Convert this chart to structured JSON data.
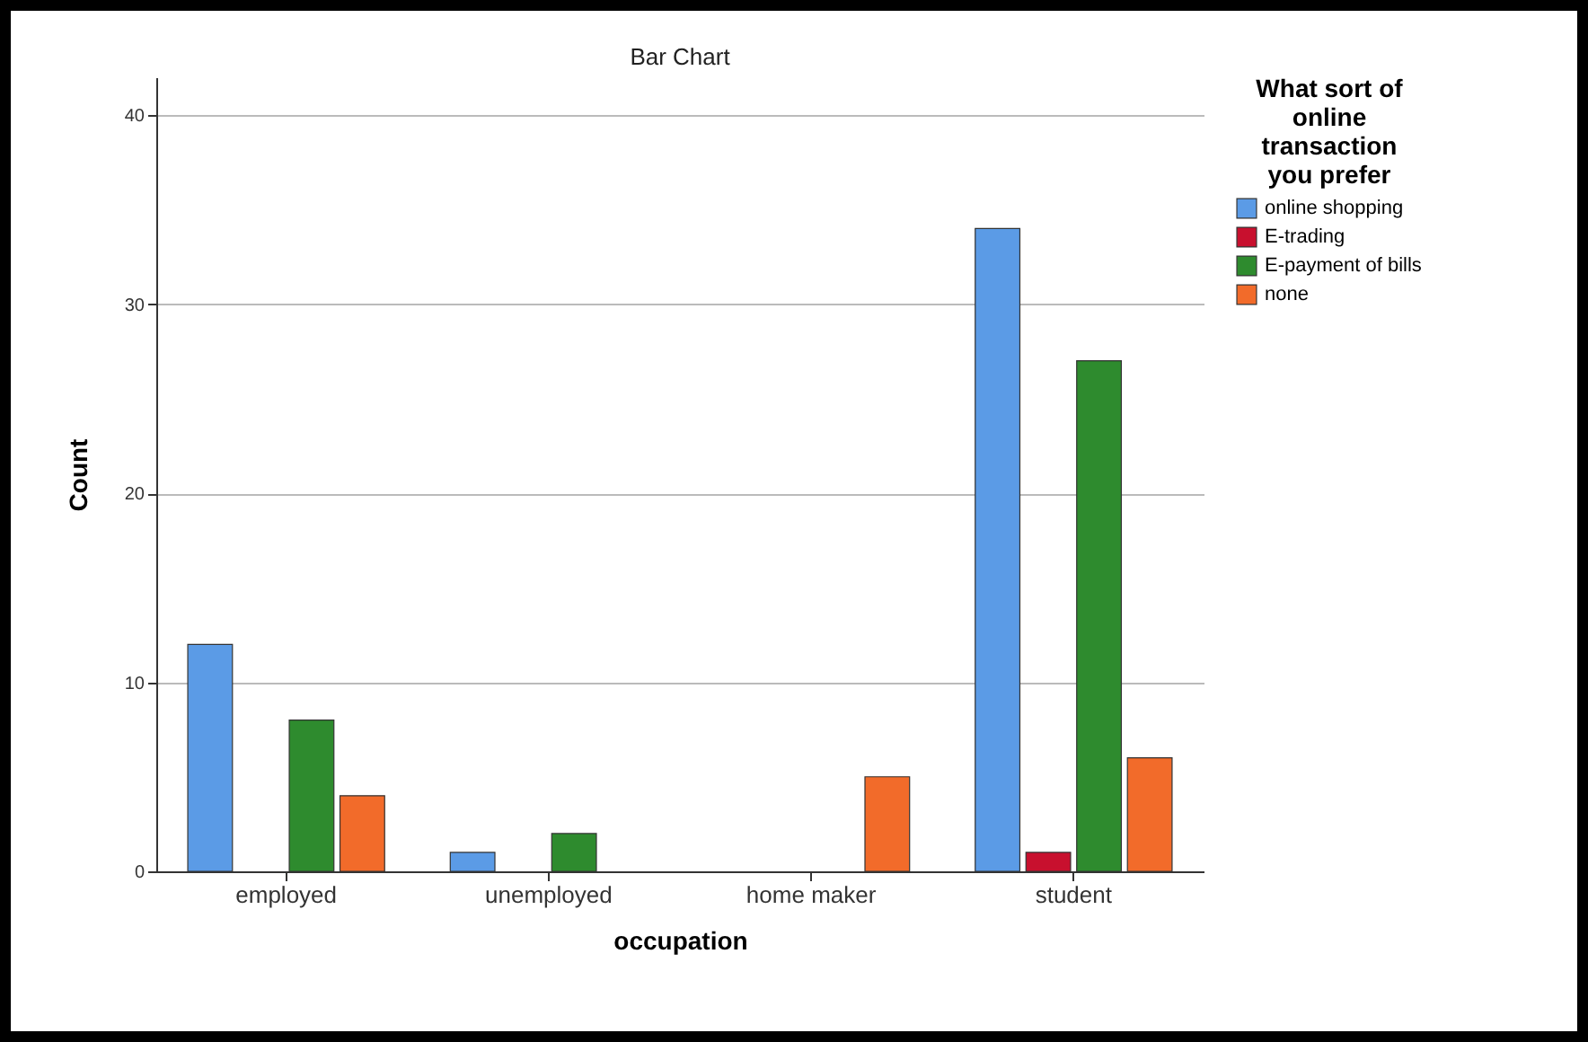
{
  "chart_data": {
    "type": "bar",
    "title": "Bar Chart",
    "xlabel": "occupation",
    "ylabel": "Count",
    "legend_title": "What sort of online transaction you prefer",
    "categories": [
      "employed",
      "unemployed",
      "home maker",
      "student"
    ],
    "series": [
      {
        "name": "online shopping",
        "color": "#5b9be6",
        "values": [
          12,
          1,
          null,
          34
        ]
      },
      {
        "name": "E-trading",
        "color": "#c8102e",
        "values": [
          null,
          null,
          null,
          1
        ]
      },
      {
        "name": "E-payment of bills",
        "color": "#2e8b2e",
        "values": [
          8,
          2,
          null,
          27
        ]
      },
      {
        "name": "none",
        "color": "#f26b2a",
        "values": [
          4,
          null,
          5,
          6
        ]
      }
    ],
    "ylim": [
      0,
      42
    ],
    "yticks": [
      0,
      10,
      20,
      30,
      40
    ],
    "grid": "y",
    "legend": "top right"
  }
}
